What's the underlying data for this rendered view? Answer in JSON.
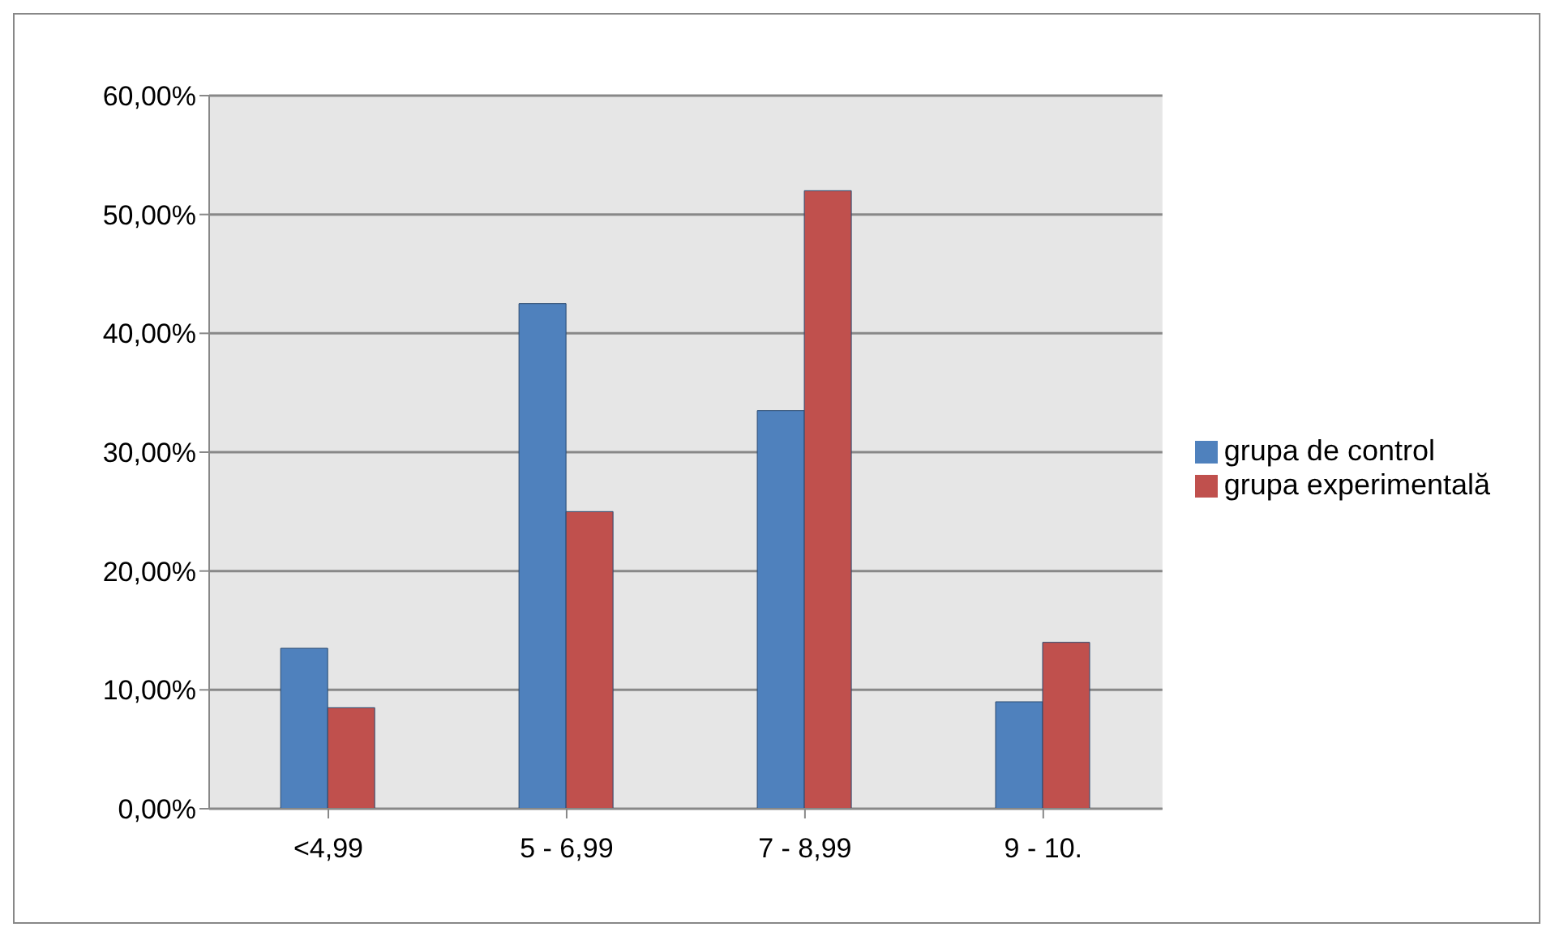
{
  "chart_data": {
    "type": "bar",
    "categories": [
      "<4,99",
      "5 - 6,99",
      "7 - 8,99",
      "9 - 10."
    ],
    "series": [
      {
        "name": "grupa de control",
        "color": "#4f81bd",
        "values": [
          13.5,
          42.5,
          33.5,
          9
        ]
      },
      {
        "name": "grupa experimentală",
        "color": "#c0504d",
        "values": [
          8.5,
          25,
          52,
          14
        ]
      }
    ],
    "ylim": [
      0,
      60
    ],
    "yticks": [
      {
        "value": 0,
        "label": "0,00%"
      },
      {
        "value": 10,
        "label": "10,00%"
      },
      {
        "value": 20,
        "label": "20,00%"
      },
      {
        "value": 30,
        "label": "30,00%"
      },
      {
        "value": 40,
        "label": "40,00%"
      },
      {
        "value": 50,
        "label": "50,00%"
      },
      {
        "value": 60,
        "label": "60,00%"
      }
    ],
    "grid": "y",
    "legend": "right"
  }
}
